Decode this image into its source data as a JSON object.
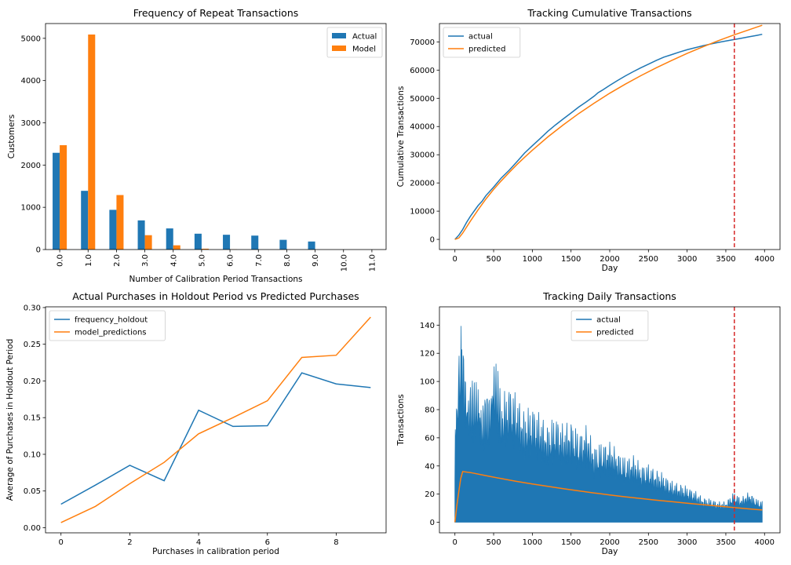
{
  "colors": {
    "actual": "#1f77b4",
    "model": "#ff7f0e",
    "marker": "#d62728"
  },
  "chart_data": [
    {
      "type": "bar",
      "title": "Frequency of Repeat Transactions",
      "xlabel": "Number of Calibration Period Transactions",
      "ylabel": "Customers",
      "categories": [
        "0.0",
        "1.0",
        "2.0",
        "3.0",
        "4.0",
        "5.0",
        "6.0",
        "7.0",
        "8.0",
        "9.0",
        "10.0",
        "11.0"
      ],
      "series": [
        {
          "name": "Actual",
          "values": [
            2290,
            1390,
            940,
            690,
            500,
            375,
            350,
            330,
            230,
            190,
            0,
            0
          ]
        },
        {
          "name": "Model",
          "values": [
            2470,
            5090,
            1290,
            340,
            100,
            20,
            5,
            0,
            0,
            0,
            0,
            0
          ]
        }
      ],
      "ylim": [
        0,
        5350
      ],
      "yticks": [
        0,
        1000,
        2000,
        3000,
        4000,
        5000
      ],
      "legend": "top-right"
    },
    {
      "type": "line",
      "title": "Tracking Cumulative Transactions",
      "xlabel": "Day",
      "ylabel": "Cumulative Transactions",
      "xlim": [
        -200,
        4200
      ],
      "ylim": [
        -3600,
        76500
      ],
      "xticks": [
        0,
        500,
        1000,
        1500,
        2000,
        2500,
        3000,
        3500,
        4000
      ],
      "yticks": [
        0,
        10000,
        20000,
        30000,
        40000,
        50000,
        60000,
        70000
      ],
      "series": [
        {
          "name": "actual",
          "x": [
            0,
            50,
            100,
            150,
            200,
            300,
            350,
            400,
            500,
            600,
            700,
            800,
            900,
            1000,
            1100,
            1200,
            1300,
            1400,
            1500,
            1600,
            1700,
            1800,
            1850,
            1900,
            2000,
            2100,
            2200,
            2300,
            2400,
            2500,
            2600,
            2700,
            2800,
            2900,
            3000,
            3100,
            3200,
            3300,
            3400,
            3500,
            3600,
            3700,
            3800,
            3900,
            3970
          ],
          "y": [
            0,
            1500,
            3500,
            6000,
            8200,
            12000,
            13500,
            15500,
            18500,
            21800,
            24500,
            27500,
            30600,
            33200,
            35700,
            38300,
            40600,
            42700,
            44800,
            46900,
            48800,
            50800,
            52000,
            52800,
            54600,
            56300,
            57900,
            59400,
            60800,
            62100,
            63400,
            64600,
            65500,
            66400,
            67200,
            67900,
            68600,
            69200,
            69800,
            70300,
            70800,
            71300,
            71800,
            72300,
            72700
          ]
        },
        {
          "name": "predicted",
          "x": [
            0,
            50,
            100,
            200,
            300,
            400,
            500,
            600,
            700,
            800,
            900,
            1000,
            1200,
            1400,
            1600,
            1800,
            2000,
            2200,
            2400,
            2600,
            2800,
            3000,
            3200,
            3400,
            3600,
            3800,
            3970
          ],
          "y": [
            0,
            500,
            2200,
            6500,
            10500,
            14300,
            17700,
            20800,
            23700,
            26500,
            29100,
            31600,
            36300,
            40600,
            44600,
            48300,
            51800,
            55000,
            58000,
            60800,
            63400,
            65900,
            68200,
            70400,
            72400,
            74300,
            75900
          ]
        }
      ],
      "marker_x": 3610,
      "legend": "top-left"
    },
    {
      "type": "line",
      "title": "Actual Purchases in Holdout Period vs Predicted Purchases",
      "xlabel": "Purchases in calibration period",
      "ylabel": "Average of Purchases in Holdout Period",
      "xlim": [
        -0.45,
        9.45
      ],
      "ylim": [
        -0.007,
        0.301
      ],
      "xticks": [
        0,
        2,
        4,
        6,
        8
      ],
      "yticks": [
        0.0,
        0.05,
        0.1,
        0.15,
        0.2,
        0.25,
        0.3
      ],
      "series": [
        {
          "name": "frequency_holdout",
          "x": [
            0,
            1,
            2,
            3,
            4,
            5,
            6,
            7,
            8,
            9
          ],
          "y": [
            0.032,
            0.058,
            0.085,
            0.064,
            0.16,
            0.138,
            0.139,
            0.211,
            0.196,
            0.191
          ]
        },
        {
          "name": "model_predictions",
          "x": [
            0,
            1,
            2,
            3,
            4,
            5,
            6,
            7,
            8,
            9
          ],
          "y": [
            0.007,
            0.029,
            0.06,
            0.089,
            0.128,
            0.15,
            0.173,
            0.232,
            0.235,
            0.287
          ]
        }
      ],
      "legend": "top-left"
    },
    {
      "type": "line",
      "title": "Tracking Daily Transactions",
      "xlabel": "Day",
      "ylabel": "Transactions",
      "xlim": [
        -200,
        4200
      ],
      "ylim": [
        -7.5,
        153
      ],
      "xticks": [
        0,
        500,
        1000,
        1500,
        2000,
        2500,
        3000,
        3500,
        4000
      ],
      "yticks": [
        0,
        20,
        40,
        60,
        80,
        100,
        120,
        140
      ],
      "series": [
        {
          "name": "actual",
          "x": [
            0,
            10,
            20,
            40,
            60,
            80,
            90,
            100,
            120,
            150,
            200,
            250,
            300,
            350,
            400,
            450,
            500,
            550,
            600,
            700,
            800,
            900,
            1000,
            1100,
            1200,
            1300,
            1400,
            1500,
            1600,
            1700,
            1800,
            1900,
            2000,
            2100,
            2200,
            2300,
            2400,
            2500,
            2600,
            2700,
            2800,
            2900,
            3000,
            3100,
            3200,
            3300,
            3400,
            3500,
            3600,
            3700,
            3800,
            3900,
            3970
          ],
          "y": [
            54,
            90,
            100,
            120,
            140,
            146,
            142,
            130,
            120,
            110,
            105,
            100,
            110,
            90,
            92,
            100,
            128,
            110,
            90,
            100,
            92,
            80,
            85,
            78,
            70,
            78,
            70,
            74,
            65,
            70,
            56,
            58,
            58,
            52,
            47,
            49,
            42,
            42,
            38,
            35,
            30,
            28,
            26,
            23,
            18,
            17,
            15,
            15,
            22,
            18,
            22,
            17,
            15
          ],
          "min": 0
        },
        {
          "name": "predicted",
          "x": [
            0,
            25,
            50,
            75,
            100,
            200,
            400,
            600,
            800,
            1000,
            1200,
            1400,
            1600,
            1800,
            2000,
            2200,
            2400,
            2600,
            2800,
            3000,
            3200,
            3400,
            3600,
            3800,
            3970
          ],
          "y": [
            0,
            12,
            22,
            31,
            36,
            35.3,
            33.1,
            31,
            29,
            27.2,
            25.5,
            23.8,
            22.3,
            20.8,
            19.4,
            18.1,
            16.9,
            15.7,
            14.6,
            13.5,
            12.5,
            11.5,
            10.5,
            9.5,
            8.7
          ]
        }
      ],
      "marker_x": 3610,
      "legend": "top-center"
    }
  ]
}
